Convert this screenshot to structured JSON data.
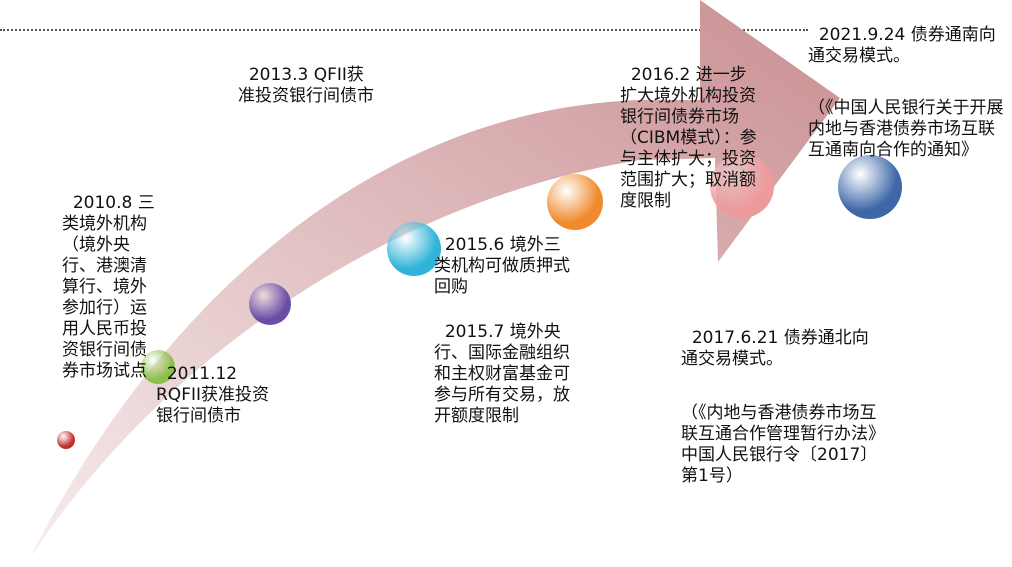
{
  "colors": {
    "arrow_light": "#f7ecec",
    "arrow_dark": "#c98f92",
    "dotted_line": "#555555",
    "text": "#111111"
  },
  "milestones": [
    {
      "date": "2010.8",
      "text": "三类境外机构（境外央行、港澳清算行、境外参加行）运用人民币投资银行间债券市场试点",
      "dot_color": "#c0302b",
      "dot_icon": "red-dot"
    },
    {
      "date": "2011.12",
      "text": "RQFII获准投资银行间债市",
      "dot_color": "#8cc04a",
      "dot_icon": "green-dot"
    },
    {
      "date": "2013.3",
      "text": "QFII获准投资银行间债市",
      "dot_color": "#6a4ea6",
      "dot_icon": "purple-dot"
    },
    {
      "date": "2015.6",
      "text": "境外三类机构可做质押式回购",
      "dot_color": "#2fb3d9",
      "dot_icon": "cyan-dot"
    },
    {
      "date": "2015.7",
      "text": "境外央行、国际金融组织和主权财富基金可参与所有交易，放开额度限制",
      "dot_color": "",
      "dot_icon": ""
    },
    {
      "date": "2016.2",
      "text": "进一步扩大境外机构投资银行间债券市场（CIBM模式）：参与主体扩大；投资范围扩大；取消额度限制",
      "dot_color": "#f08a2c",
      "dot_icon": "orange-dot"
    },
    {
      "date": "2017.6.21",
      "text": "债券通北向通交易模式。",
      "note": "（《内地与香港债券市场互联互通合作管理暂行办法》中国人民银行令〔2017〕第1号）",
      "dot_color": "#ec9a9b",
      "dot_icon": "pink-dot"
    },
    {
      "date": "2021.9.24",
      "text": "债券通南向通交易模式。",
      "note": "（《中国人民银行关于开展内地与香港债券市场互联互通南向合作的通知》",
      "dot_color": "#3e67a8",
      "dot_icon": "blue-dot"
    }
  ]
}
